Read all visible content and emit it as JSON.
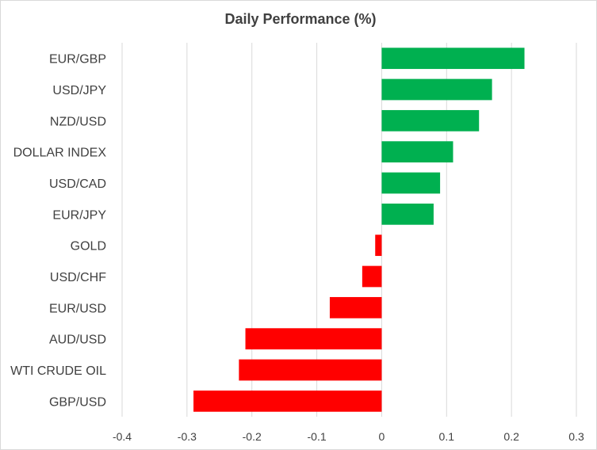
{
  "chart_data": {
    "type": "bar",
    "orientation": "horizontal",
    "title": "Daily Performance (%)",
    "xlabel": "",
    "ylabel": "",
    "categories": [
      "EUR/GBP",
      "USD/JPY",
      "NZD/USD",
      "DOLLAR INDEX",
      "USD/CAD",
      "EUR/JPY",
      "GOLD",
      "USD/CHF",
      "EUR/USD",
      "AUD/USD",
      "WTI CRUDE OIL",
      "GBP/USD"
    ],
    "values": [
      0.22,
      0.17,
      0.15,
      0.11,
      0.09,
      0.08,
      -0.01,
      -0.03,
      -0.08,
      -0.21,
      -0.22,
      -0.29
    ],
    "xlim": [
      -0.4,
      0.3
    ],
    "xticks": [
      -0.4,
      -0.3,
      -0.2,
      -0.1,
      0,
      0.1,
      0.2,
      0.3
    ],
    "xtick_labels": [
      "-0.4",
      "-0.3",
      "-0.2",
      "-0.1",
      "0",
      "0.1",
      "0.2",
      "0.3"
    ],
    "grid": true,
    "legend": "none",
    "colors": {
      "positive": "#00b050",
      "negative": "#ff0000",
      "grid": "#d9d9d9",
      "text": "#404040"
    }
  }
}
